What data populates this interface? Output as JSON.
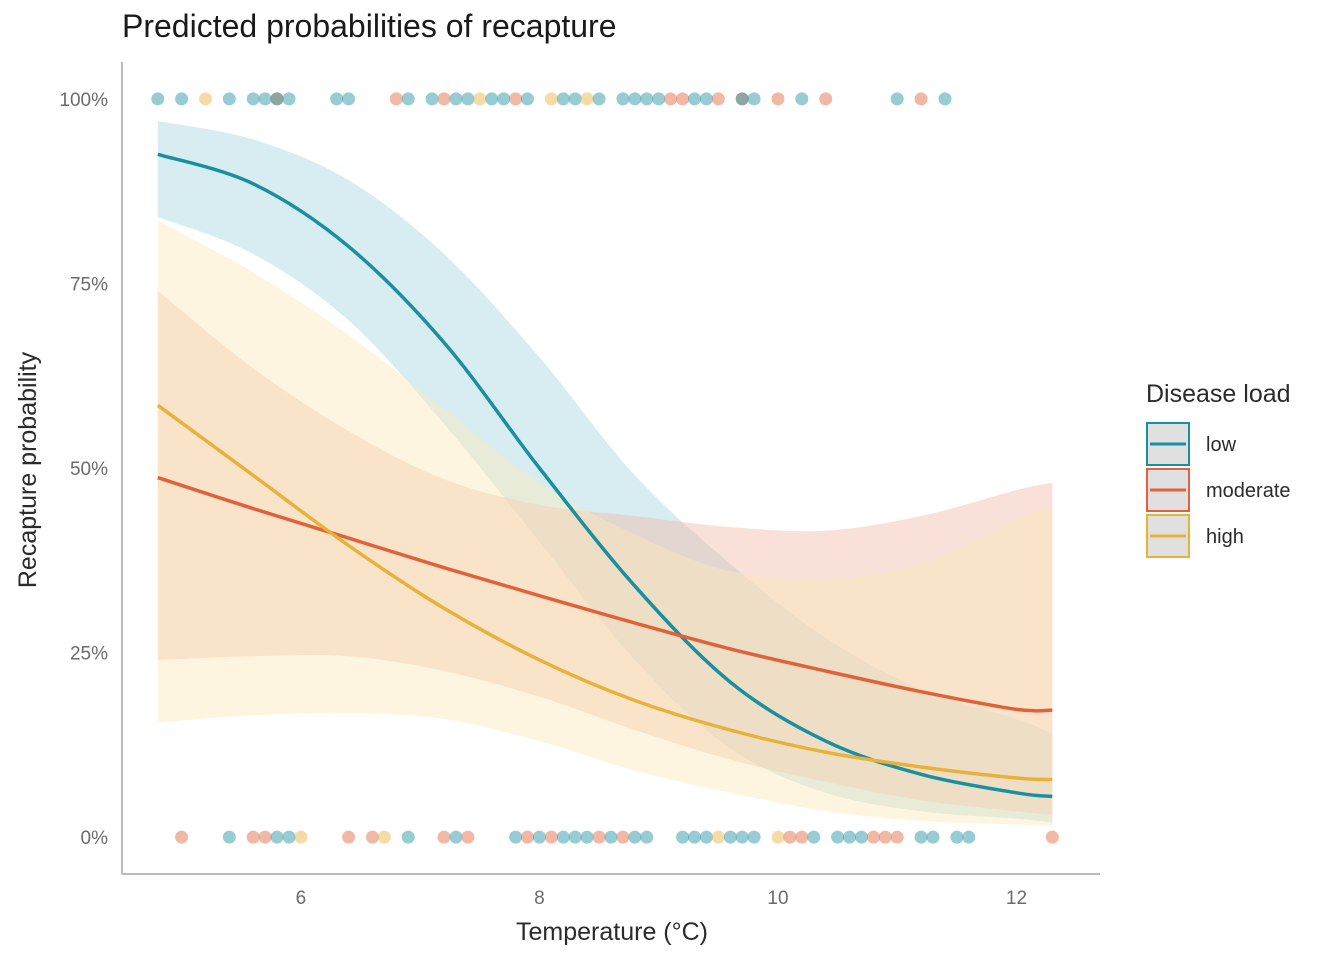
{
  "chart_data": {
    "type": "line",
    "title": "Predicted probabilities of recapture",
    "xlabel": "Temperature (°C)",
    "ylabel": "Recapture probability",
    "xlim": [
      4.5,
      12.7
    ],
    "ylim": [
      -0.05,
      1.05
    ],
    "x_ticks": [
      6,
      8,
      10,
      12
    ],
    "x_tick_labels": [
      "6",
      "8",
      "10",
      "12"
    ],
    "y_ticks": [
      0,
      0.25,
      0.5,
      0.75,
      1.0
    ],
    "y_tick_labels": [
      "0%",
      "25%",
      "50%",
      "75%",
      "100%"
    ],
    "grid": false,
    "legend": {
      "title": "Disease load",
      "position": "right"
    },
    "series": [
      {
        "name": "low",
        "color": "#1a8fa0",
        "ribbon_color": "#a8d6e0",
        "x": [
          4.8,
          5.6,
          6.4,
          7.2,
          8.0,
          8.8,
          9.6,
          10.4,
          11.2,
          12.0,
          12.3
        ],
        "y": [
          0.925,
          0.885,
          0.8,
          0.67,
          0.5,
          0.34,
          0.21,
          0.13,
          0.085,
          0.06,
          0.055
        ],
        "lower": [
          0.84,
          0.79,
          0.7,
          0.56,
          0.4,
          0.24,
          0.12,
          0.06,
          0.035,
          0.025,
          0.02
        ],
        "upper": [
          0.97,
          0.945,
          0.89,
          0.79,
          0.65,
          0.49,
          0.37,
          0.27,
          0.2,
          0.16,
          0.14
        ]
      },
      {
        "name": "moderate",
        "color": "#e0623a",
        "ribbon_color": "#f2bba8",
        "x": [
          4.8,
          5.6,
          6.4,
          7.2,
          8.0,
          8.8,
          9.6,
          10.4,
          11.2,
          12.0,
          12.3
        ],
        "y": [
          0.487,
          0.445,
          0.405,
          0.365,
          0.327,
          0.29,
          0.255,
          0.225,
          0.197,
          0.173,
          0.172
        ],
        "lower": [
          0.24,
          0.245,
          0.245,
          0.225,
          0.19,
          0.145,
          0.105,
          0.075,
          0.05,
          0.035,
          0.03
        ],
        "upper": [
          0.74,
          0.635,
          0.55,
          0.485,
          0.45,
          0.435,
          0.42,
          0.415,
          0.435,
          0.47,
          0.48
        ]
      },
      {
        "name": "high",
        "color": "#e8b23a",
        "ribbon_color": "#fbe8b9",
        "x": [
          4.8,
          5.6,
          6.4,
          7.2,
          8.0,
          8.8,
          9.6,
          10.4,
          11.2,
          12.0,
          12.3
        ],
        "y": [
          0.585,
          0.49,
          0.395,
          0.31,
          0.24,
          0.185,
          0.145,
          0.115,
          0.095,
          0.08,
          0.078
        ],
        "lower": [
          0.155,
          0.165,
          0.168,
          0.16,
          0.13,
          0.09,
          0.06,
          0.035,
          0.022,
          0.017,
          0.015
        ],
        "upper": [
          0.835,
          0.765,
          0.68,
          0.58,
          0.48,
          0.41,
          0.36,
          0.35,
          0.37,
          0.43,
          0.45
        ]
      }
    ],
    "observations": {
      "recaptured": [
        {
          "x": 4.8,
          "load": "low"
        },
        {
          "x": 5.0,
          "load": "low"
        },
        {
          "x": 5.2,
          "load": "high"
        },
        {
          "x": 5.4,
          "load": "low"
        },
        {
          "x": 5.6,
          "load": "low"
        },
        {
          "x": 5.7,
          "load": "low"
        },
        {
          "x": 5.8,
          "load": "moderate"
        },
        {
          "x": 5.8,
          "load": "low"
        },
        {
          "x": 5.9,
          "load": "low"
        },
        {
          "x": 6.3,
          "load": "low"
        },
        {
          "x": 6.4,
          "load": "low"
        },
        {
          "x": 6.8,
          "load": "moderate"
        },
        {
          "x": 6.9,
          "load": "low"
        },
        {
          "x": 7.1,
          "load": "low"
        },
        {
          "x": 7.2,
          "load": "moderate"
        },
        {
          "x": 7.3,
          "load": "low"
        },
        {
          "x": 7.4,
          "load": "low"
        },
        {
          "x": 7.5,
          "load": "high"
        },
        {
          "x": 7.6,
          "load": "low"
        },
        {
          "x": 7.7,
          "load": "low"
        },
        {
          "x": 7.8,
          "load": "moderate"
        },
        {
          "x": 7.9,
          "load": "low"
        },
        {
          "x": 8.1,
          "load": "high"
        },
        {
          "x": 8.2,
          "load": "low"
        },
        {
          "x": 8.3,
          "load": "low"
        },
        {
          "x": 8.4,
          "load": "high"
        },
        {
          "x": 8.5,
          "load": "low"
        },
        {
          "x": 8.7,
          "load": "low"
        },
        {
          "x": 8.8,
          "load": "low"
        },
        {
          "x": 8.9,
          "load": "low"
        },
        {
          "x": 9.0,
          "load": "low"
        },
        {
          "x": 9.1,
          "load": "moderate"
        },
        {
          "x": 9.2,
          "load": "moderate"
        },
        {
          "x": 9.3,
          "load": "low"
        },
        {
          "x": 9.4,
          "load": "low"
        },
        {
          "x": 9.5,
          "load": "moderate"
        },
        {
          "x": 9.7,
          "load": "moderate"
        },
        {
          "x": 9.7,
          "load": "low"
        },
        {
          "x": 9.8,
          "load": "low"
        },
        {
          "x": 10.0,
          "load": "moderate"
        },
        {
          "x": 10.2,
          "load": "low"
        },
        {
          "x": 10.4,
          "load": "moderate"
        },
        {
          "x": 11.0,
          "load": "low"
        },
        {
          "x": 11.2,
          "load": "moderate"
        },
        {
          "x": 11.4,
          "load": "low"
        }
      ],
      "not_recaptured": [
        {
          "x": 5.0,
          "load": "moderate"
        },
        {
          "x": 5.4,
          "load": "low"
        },
        {
          "x": 5.6,
          "load": "moderate"
        },
        {
          "x": 5.7,
          "load": "moderate"
        },
        {
          "x": 5.8,
          "load": "low"
        },
        {
          "x": 5.9,
          "load": "low"
        },
        {
          "x": 6.0,
          "load": "high"
        },
        {
          "x": 6.4,
          "load": "moderate"
        },
        {
          "x": 6.6,
          "load": "moderate"
        },
        {
          "x": 6.7,
          "load": "high"
        },
        {
          "x": 6.9,
          "load": "low"
        },
        {
          "x": 7.2,
          "load": "moderate"
        },
        {
          "x": 7.3,
          "load": "low"
        },
        {
          "x": 7.4,
          "load": "moderate"
        },
        {
          "x": 7.8,
          "load": "low"
        },
        {
          "x": 7.9,
          "load": "moderate"
        },
        {
          "x": 8.0,
          "load": "low"
        },
        {
          "x": 8.1,
          "load": "moderate"
        },
        {
          "x": 8.2,
          "load": "low"
        },
        {
          "x": 8.3,
          "load": "low"
        },
        {
          "x": 8.4,
          "load": "low"
        },
        {
          "x": 8.5,
          "load": "moderate"
        },
        {
          "x": 8.6,
          "load": "low"
        },
        {
          "x": 8.7,
          "load": "moderate"
        },
        {
          "x": 8.8,
          "load": "low"
        },
        {
          "x": 8.9,
          "load": "low"
        },
        {
          "x": 9.2,
          "load": "low"
        },
        {
          "x": 9.3,
          "load": "low"
        },
        {
          "x": 9.4,
          "load": "low"
        },
        {
          "x": 9.5,
          "load": "high"
        },
        {
          "x": 9.6,
          "load": "low"
        },
        {
          "x": 9.7,
          "load": "low"
        },
        {
          "x": 9.8,
          "load": "low"
        },
        {
          "x": 10.0,
          "load": "high"
        },
        {
          "x": 10.1,
          "load": "moderate"
        },
        {
          "x": 10.2,
          "load": "moderate"
        },
        {
          "x": 10.3,
          "load": "low"
        },
        {
          "x": 10.5,
          "load": "low"
        },
        {
          "x": 10.6,
          "load": "low"
        },
        {
          "x": 10.7,
          "load": "low"
        },
        {
          "x": 10.8,
          "load": "moderate"
        },
        {
          "x": 10.9,
          "load": "moderate"
        },
        {
          "x": 11.0,
          "load": "moderate"
        },
        {
          "x": 11.2,
          "load": "low"
        },
        {
          "x": 11.3,
          "load": "low"
        },
        {
          "x": 11.5,
          "load": "low"
        },
        {
          "x": 11.6,
          "load": "low"
        },
        {
          "x": 12.3,
          "load": "moderate"
        }
      ]
    }
  }
}
